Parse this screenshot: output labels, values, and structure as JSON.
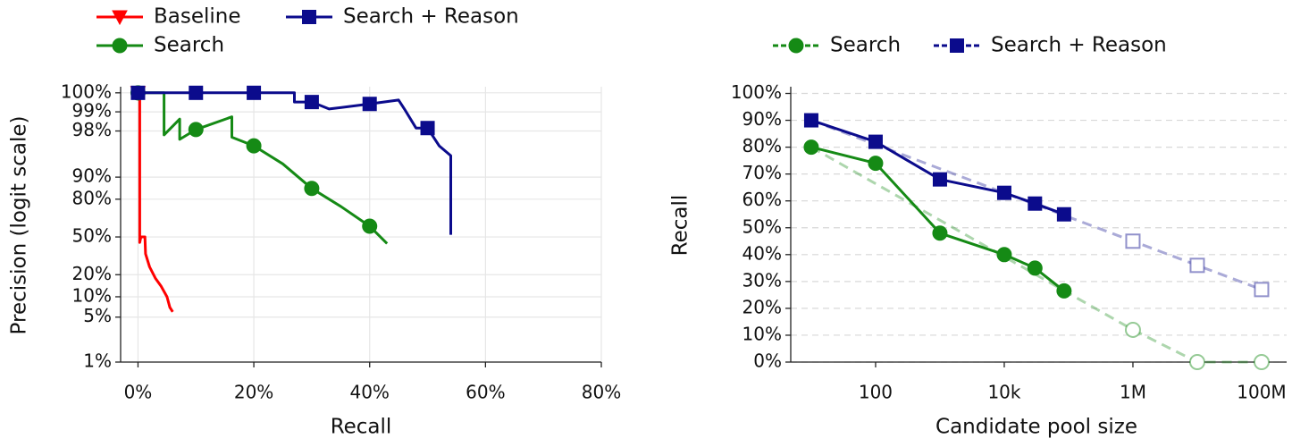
{
  "chart_data": [
    {
      "type": "line",
      "xlabel": "Recall",
      "ylabel": "Precision (logit scale)",
      "yscale": "logit",
      "grid": "both",
      "legend": "top-left",
      "legend_columns": 2,
      "xlim": [
        -3,
        80
      ],
      "xticks": [
        {
          "value": 0,
          "label": "0%"
        },
        {
          "value": 20,
          "label": "20%"
        },
        {
          "value": 40,
          "label": "40%"
        },
        {
          "value": 60,
          "label": "60%"
        },
        {
          "value": 80,
          "label": "80%"
        }
      ],
      "ylim": [
        1,
        99.6
      ],
      "yticks": [
        {
          "value": 1,
          "label": "1%"
        },
        {
          "value": 5,
          "label": "5%"
        },
        {
          "value": 10,
          "label": "10%"
        },
        {
          "value": 20,
          "label": "20%"
        },
        {
          "value": 50,
          "label": "50%"
        },
        {
          "value": 80,
          "label": "80%"
        },
        {
          "value": 90,
          "label": "90%"
        },
        {
          "value": 98,
          "label": "98%"
        },
        {
          "value": 99,
          "label": "99%"
        },
        {
          "value": 99.5,
          "label": "100%"
        }
      ],
      "series": [
        {
          "name": "Baseline",
          "color": "#ff0000",
          "marker": "triangle-down",
          "x": [
            0,
            0.3,
            0.3,
            0.5,
            1.2,
            1.3,
            2,
            3,
            4,
            5,
            5.5,
            6
          ],
          "values": [
            99.5,
            99.5,
            45,
            50,
            50,
            35,
            25,
            18,
            14,
            10,
            7,
            6
          ]
        },
        {
          "name": "Search",
          "color": "#158a15",
          "marker": "circle",
          "x": [
            0,
            4.5,
            4.5,
            7.2,
            7.2,
            10,
            16.2,
            16.2,
            20,
            25,
            30,
            35,
            40,
            43
          ],
          "values": [
            99.5,
            99.5,
            97.7,
            98.7,
            97.3,
            98.1,
            98.8,
            97.5,
            96.6,
            93.6,
            85.6,
            75.5,
            59.8,
            44
          ]
        },
        {
          "name": "Search + Reason",
          "color": "#0b0b8c",
          "marker": "square",
          "x": [
            0,
            10,
            20,
            27,
            27,
            30,
            33,
            33,
            40,
            45,
            46,
            48,
            50,
            52,
            54,
            54
          ],
          "values": [
            99.5,
            99.5,
            99.5,
            99.5,
            99.3,
            99.3,
            99.1,
            99.1,
            99.25,
            99.35,
            99.1,
            98.2,
            98.2,
            96.6,
            95.2,
            52
          ]
        }
      ]
    },
    {
      "type": "line",
      "xlabel": "Candidate pool size",
      "ylabel": "Recall",
      "xscale": "log",
      "grid": "y",
      "legend": "top",
      "legend_columns": 2,
      "legend_linestyle": "dashed",
      "xlim": [
        4.8,
        245000000
      ],
      "xticks": [
        100,
        {
          "value": 10000,
          "label": "10k"
        },
        {
          "value": 1000000,
          "label": "1M"
        },
        {
          "value": 100000000,
          "label": "100M"
        }
      ],
      "ylim": [
        0,
        102.5
      ],
      "yticks": [
        {
          "value": 0,
          "label": "0%"
        },
        {
          "value": 10,
          "label": "10%"
        },
        {
          "value": 20,
          "label": "20%"
        },
        {
          "value": 30,
          "label": "30%"
        },
        {
          "value": 40,
          "label": "40%"
        },
        {
          "value": 50,
          "label": "50%"
        },
        {
          "value": 60,
          "label": "60%"
        },
        {
          "value": 70,
          "label": "70%"
        },
        {
          "value": 80,
          "label": "80%"
        },
        {
          "value": 90,
          "label": "90%"
        },
        {
          "value": 100,
          "label": "100%"
        }
      ],
      "series": [
        {
          "name": "Search",
          "color": "#158a15",
          "marker": "circle",
          "x": [
            10,
            100,
            1000,
            10000,
            30000,
            85000
          ],
          "values": [
            80,
            74,
            48,
            40,
            35,
            26.5
          ],
          "trend": {
            "x": [
              10,
              1000000,
              10000000,
              100000000
            ],
            "values": [
              80,
              12,
              0,
              0
            ]
          }
        },
        {
          "name": "Search + Reason",
          "color": "#0b0b8c",
          "marker": "square",
          "x": [
            10,
            100,
            1000,
            10000,
            30000,
            85000
          ],
          "values": [
            90,
            82,
            68,
            63,
            59,
            55
          ],
          "trend": {
            "x": [
              10,
              1000000,
              10000000,
              100000000
            ],
            "values": [
              90,
              45,
              36,
              27
            ]
          }
        }
      ]
    }
  ]
}
